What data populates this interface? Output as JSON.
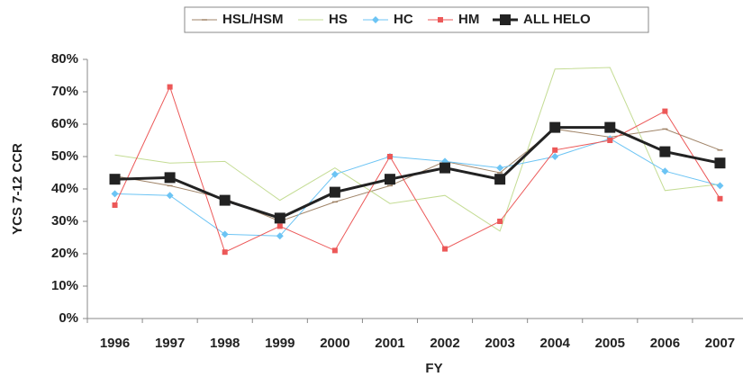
{
  "chart_data": {
    "type": "line",
    "x_label": "FY",
    "y_label": "YCS 7-12 CCR",
    "categories": [
      "1996",
      "1997",
      "1998",
      "1999",
      "2000",
      "2001",
      "2002",
      "2003",
      "2004",
      "2005",
      "2006",
      "2007"
    ],
    "series": [
      {
        "name": "HSL/HSM",
        "color": "#a08468",
        "marker": "dash",
        "width": 1,
        "values": [
          44,
          41,
          37,
          30,
          36,
          41,
          48.5,
          45,
          58.5,
          56,
          58.5,
          52
        ]
      },
      {
        "name": "HS",
        "color": "#c4dc94",
        "marker": "none",
        "width": 1,
        "values": [
          50.5,
          48,
          48.5,
          36.5,
          46.5,
          35.5,
          38,
          27,
          77,
          77.5,
          39.5,
          41.5
        ]
      },
      {
        "name": "HC",
        "color": "#6cc4f4",
        "marker": "diamond",
        "width": 1,
        "values": [
          38.5,
          38,
          26,
          25.5,
          44.5,
          50,
          48.5,
          46.5,
          50,
          55.5,
          45.5,
          41
        ]
      },
      {
        "name": "HM",
        "color": "#ec5858",
        "marker": "square",
        "width": 1,
        "values": [
          35,
          71.5,
          20.5,
          28.5,
          21,
          50,
          21.5,
          30,
          52,
          55,
          64,
          37
        ]
      },
      {
        "name": "ALL HELO",
        "color": "#222222",
        "marker": "bigsquare",
        "width": 3,
        "values": [
          43,
          43.5,
          36.5,
          31,
          39,
          43,
          46.5,
          43,
          59,
          59,
          51.5,
          48
        ]
      }
    ],
    "ylim": [
      0,
      80
    ],
    "yticks": [
      {
        "value": 0,
        "label": "0%"
      },
      {
        "value": 10,
        "label": "10%"
      },
      {
        "value": 20,
        "label": "20%"
      },
      {
        "value": 30,
        "label": "30%"
      },
      {
        "value": 40,
        "label": "40%"
      },
      {
        "value": 50,
        "label": "50%"
      },
      {
        "value": 60,
        "label": "60%"
      },
      {
        "value": 70,
        "label": "70%"
      },
      {
        "value": 80,
        "label": "80%"
      }
    ],
    "grid": false,
    "legend": "top"
  }
}
